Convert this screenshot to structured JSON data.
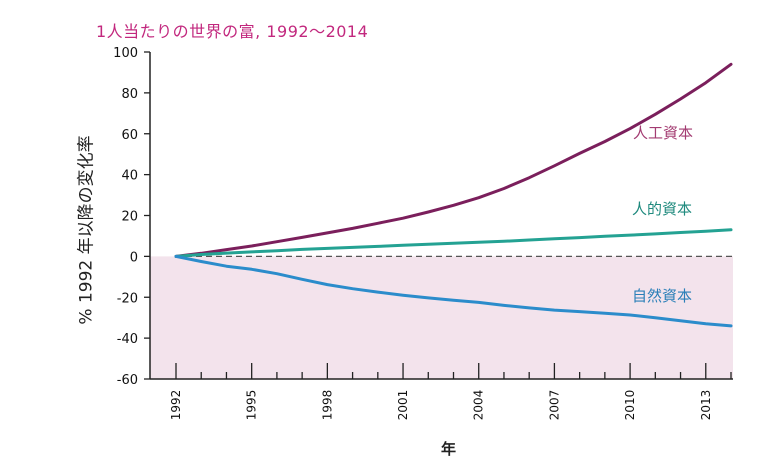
{
  "chart_data": {
    "type": "line",
    "title": "1人当たりの世界の富, 1992～2014",
    "xlabel": "年",
    "ylabel": "% 1992 年以降の変化率",
    "x": [
      1992,
      1993,
      1994,
      1995,
      1996,
      1997,
      1998,
      1999,
      2000,
      2001,
      2002,
      2003,
      2004,
      2005,
      2006,
      2007,
      2008,
      2009,
      2010,
      2011,
      2012,
      2013,
      2014
    ],
    "xticks": [
      "1992",
      "1995",
      "1998",
      "2001",
      "2004",
      "2007",
      "2010",
      "2013"
    ],
    "xlim": [
      1992,
      2014
    ],
    "yticks": [
      "100",
      "80",
      "60",
      "40",
      "20",
      "0",
      "-20",
      "-40",
      "-60"
    ],
    "ylim": [
      -60,
      100
    ],
    "series": [
      {
        "name": "人工資本",
        "color": "#7b1f5c",
        "values": [
          0,
          1.5,
          3.3,
          5.1,
          7.2,
          9.3,
          11.5,
          13.7,
          16.2,
          18.7,
          21.7,
          25,
          28.7,
          33.2,
          38.5,
          44.3,
          50.4,
          56.2,
          62.5,
          69.5,
          77,
          85,
          94
        ]
      },
      {
        "name": "人的資本",
        "color": "#24a293",
        "values": [
          0,
          0.9,
          1.6,
          2.2,
          2.8,
          3.4,
          3.9,
          4.4,
          4.9,
          5.4,
          5.9,
          6.4,
          6.9,
          7.4,
          8,
          8.6,
          9.2,
          9.8,
          10.4,
          11,
          11.7,
          12.3,
          13
        ]
      },
      {
        "name": "自然資本",
        "color": "#2b8ccb",
        "values": [
          0,
          -2.5,
          -4.8,
          -6.3,
          -8.5,
          -11.2,
          -13.8,
          -15.8,
          -17.5,
          -19,
          -20.3,
          -21.5,
          -22.5,
          -24,
          -25.2,
          -26.3,
          -27,
          -27.8,
          -28.7,
          -30,
          -31.5,
          -33,
          -34
        ]
      }
    ],
    "series_label_colors": [
      "#a33c72",
      "#1f8a7e",
      "#2a7fb8"
    ],
    "zero_line": "dashed",
    "negative_region_fill": "#f3e3ec",
    "grid": false,
    "legend": "inline-labels"
  }
}
